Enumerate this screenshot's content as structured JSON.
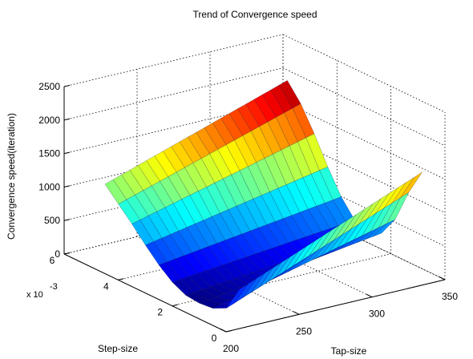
{
  "chart_data": {
    "type": "surface3d",
    "title": "Trend of Convergence speed",
    "xlabel": "Tap-size",
    "ylabel": "Step-size",
    "zlabel": "Convergence speed(iteration)",
    "xlim": [
      200,
      350
    ],
    "ylim": [
      0,
      0.006
    ],
    "zlim": [
      0,
      2500
    ],
    "x_ticks": [
      200,
      250,
      300,
      350
    ],
    "x_tick_labels": [
      "200",
      "250",
      "300",
      "350"
    ],
    "y_ticks": [
      0,
      0.002,
      0.004,
      0.006
    ],
    "y_tick_labels": [
      "0",
      "2",
      "4",
      "6"
    ],
    "y_exponent_label": "x 10",
    "y_exponent_power": "-3",
    "z_ticks": [
      0,
      500,
      1000,
      1500,
      2000,
      2500
    ],
    "z_tick_labels": [
      "0",
      "500",
      "1000",
      "1500",
      "2000",
      "2500"
    ],
    "grid": true,
    "colormap": "jet",
    "tap_size": [
      215,
      340
    ],
    "step_size": [
      0.0003,
      0.0008,
      0.0013,
      0.0018,
      0.0023,
      0.0028,
      0.0033,
      0.0038,
      0.0043,
      0.0048,
      0.0053
    ],
    "convergence_at_tap_215": [
      500,
      120,
      20,
      0,
      20,
      120,
      280,
      480,
      700,
      900,
      1100
    ],
    "convergence_at_tap_340": [
      1600,
      1200,
      700,
      400,
      300,
      400,
      650,
      1000,
      1400,
      1750,
      2000
    ]
  }
}
